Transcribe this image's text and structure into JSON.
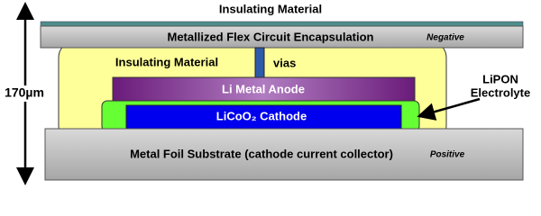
{
  "dimension": {
    "label": "170µm"
  },
  "layers": {
    "top_insulator": {
      "label": "Insulating Material"
    },
    "encapsulation": {
      "label": "Metallized Flex Circuit Encapsulation",
      "terminal": "Negative"
    },
    "insulator": {
      "label": "Insulating Material"
    },
    "vias": {
      "label": "vias"
    },
    "anode": {
      "label": "Li Metal Anode"
    },
    "electrolyte": {
      "label_lines": [
        "LiPON",
        "Electrolyte"
      ]
    },
    "cathode": {
      "label": "LiCoO₂ Cathode"
    },
    "substrate": {
      "label": "Metal Foil Substrate (cathode current collector)",
      "terminal": "Positive"
    }
  }
}
